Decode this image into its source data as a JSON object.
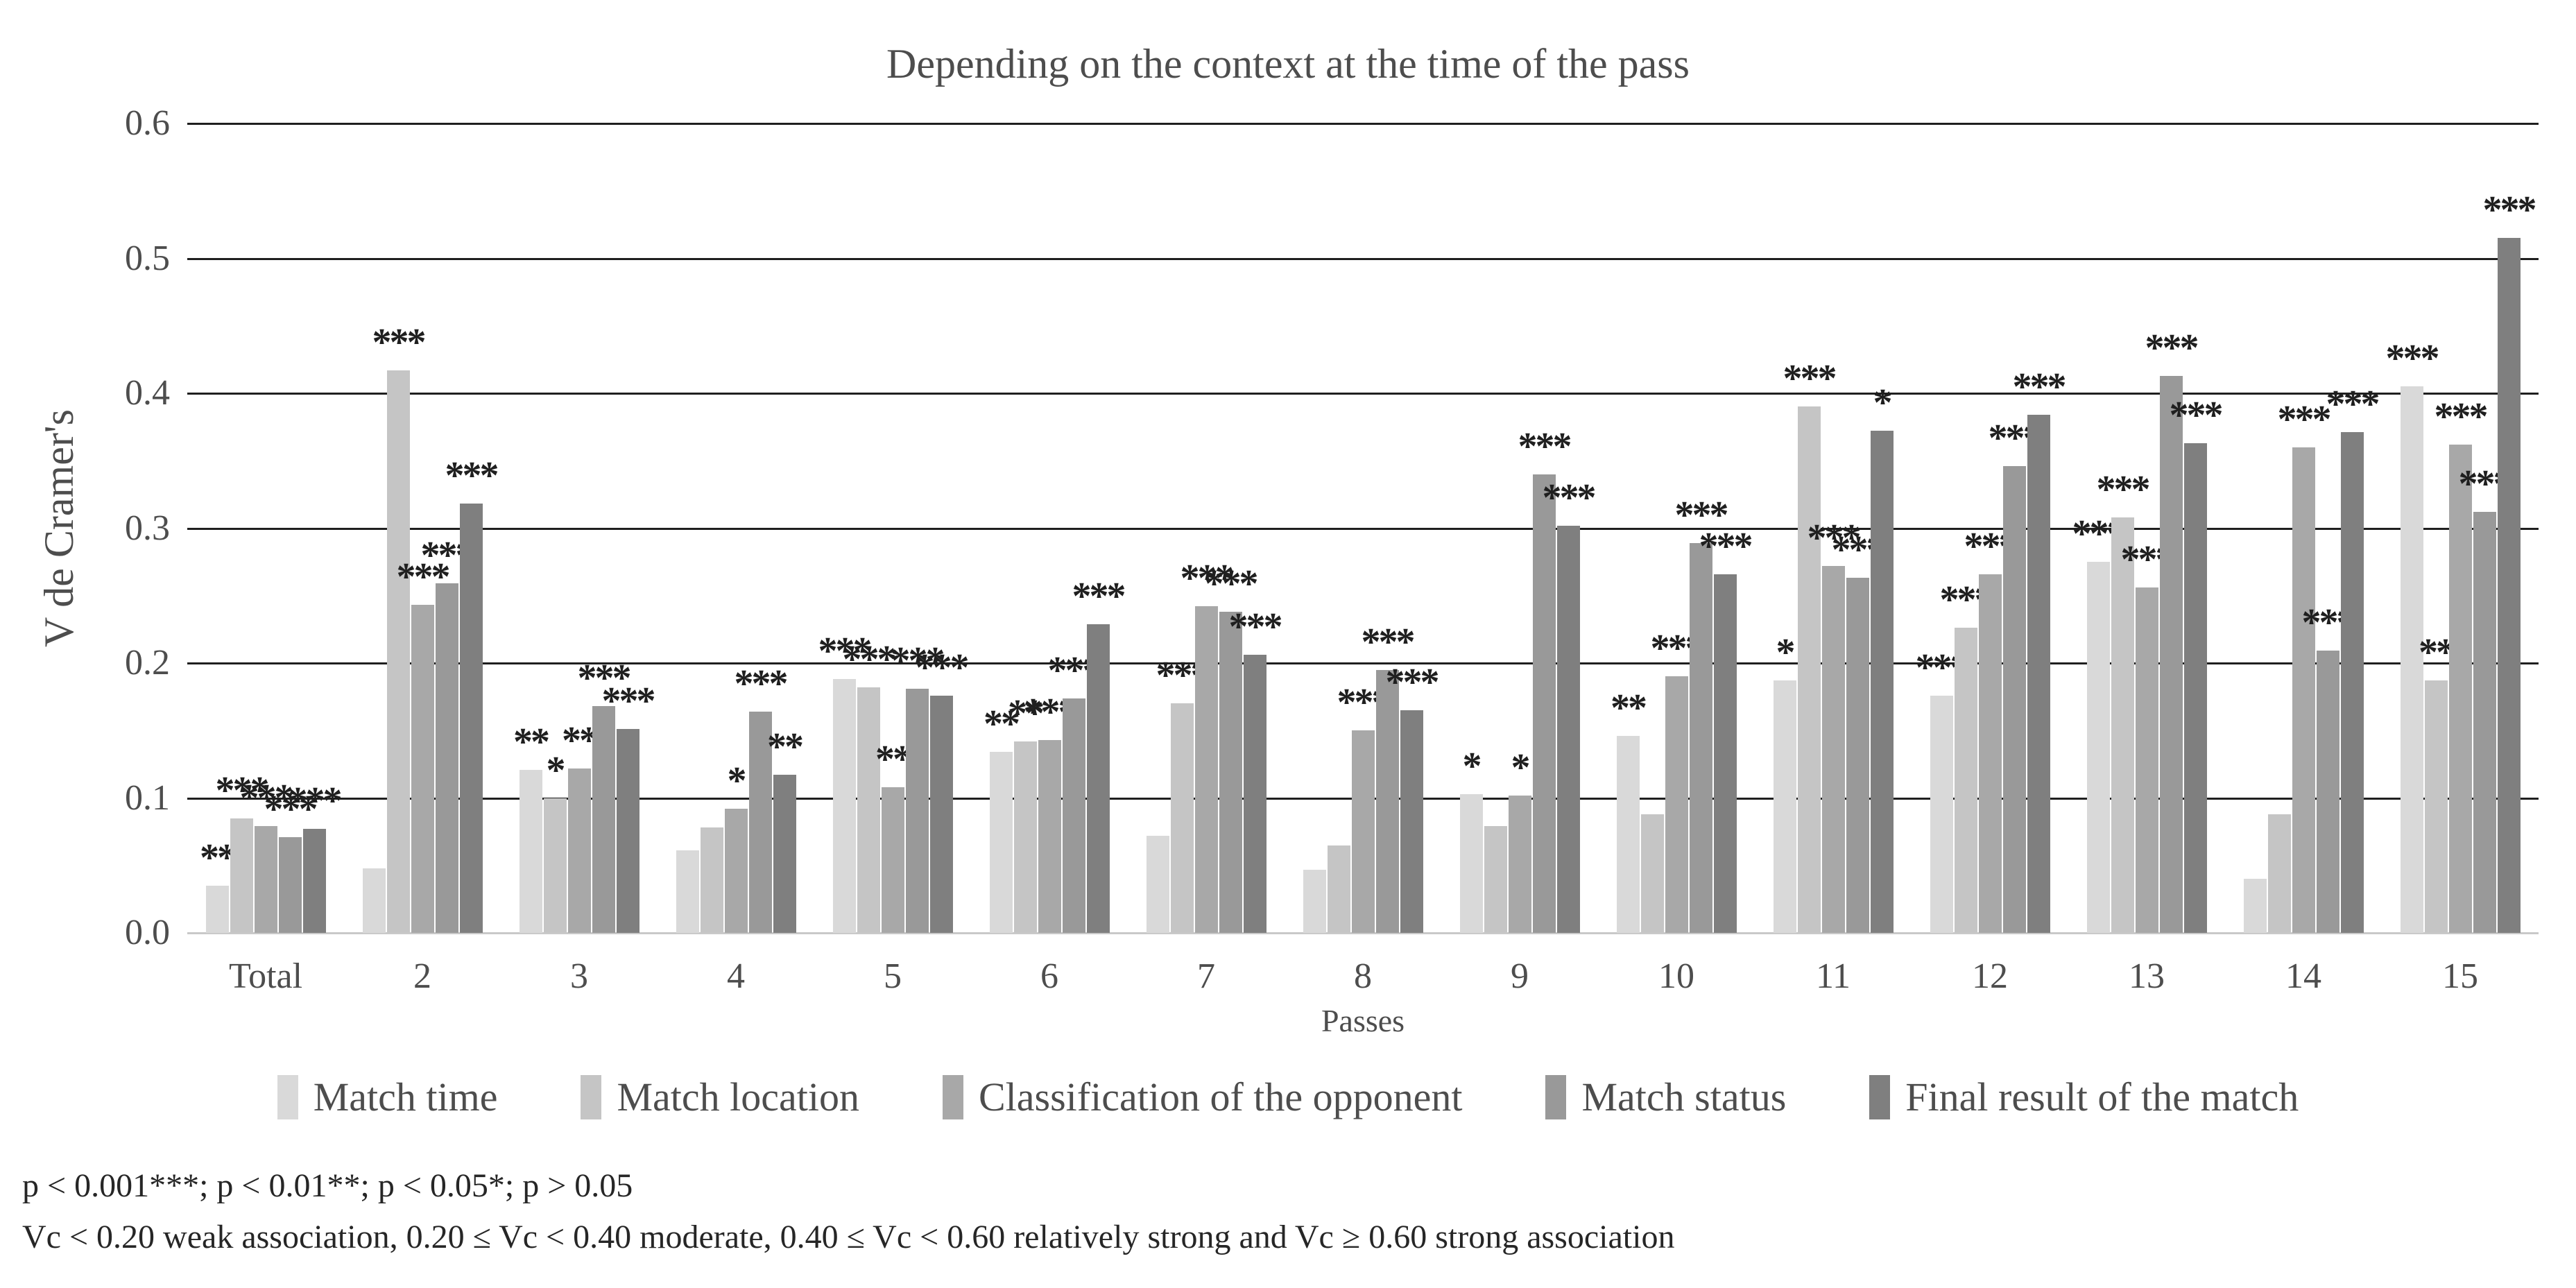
{
  "title": "Depending on the context at the time of the pass",
  "y_axis": {
    "title": "V de Cramer's",
    "ticks": [
      "0.6",
      "0.5",
      "0.4",
      "0.3",
      "0.2",
      "0.1",
      "0.0"
    ],
    "min": 0.0,
    "max": 0.6
  },
  "x_axis": {
    "title": "Passes",
    "categories": [
      "Total",
      "2",
      "3",
      "4",
      "5",
      "6",
      "7",
      "8",
      "9",
      "10",
      "11",
      "12",
      "13",
      "14",
      "15"
    ]
  },
  "legend": {
    "items": [
      {
        "label": "Match time",
        "color": "#d9d9d9"
      },
      {
        "label": "Match location",
        "color": "#c5c5c5"
      },
      {
        "label": "Classification of the opponent",
        "color": "#a8a8a8"
      },
      {
        "label": "Match status",
        "color": "#999999"
      },
      {
        "label": "Final result of the match",
        "color": "#7f7f7f"
      }
    ]
  },
  "footnotes": {
    "pvalues": "p < 0.001***; p < 0.01**; p < 0.05*; p > 0.05",
    "vc_scale": "Vc < 0.20 weak association, 0.20 ≤ Vc < 0.40 moderate, 0.40 ≤ Vc < 0.60 relatively strong and Vc ≥ 0.60 strong association"
  },
  "chart_data": {
    "type": "bar",
    "title": "Depending on the context at the time of the pass",
    "xlabel": "Passes",
    "ylabel": "V de Cramer's",
    "ylim": [
      0,
      0.6
    ],
    "grid": "horizontal",
    "legend_position": "bottom",
    "categories": [
      "Total",
      "2",
      "3",
      "4",
      "5",
      "6",
      "7",
      "8",
      "9",
      "10",
      "11",
      "12",
      "13",
      "14",
      "15"
    ],
    "series": [
      {
        "name": "Match time",
        "color": "#d9d9d9",
        "values": [
          0.035,
          0.048,
          0.121,
          0.061,
          0.188,
          0.134,
          0.072,
          0.047,
          0.103,
          0.146,
          0.187,
          0.176,
          0.275,
          0.04,
          0.405
        ],
        "significance": [
          "**",
          "",
          "**",
          "",
          "***",
          "**",
          "",
          "",
          "*",
          "**",
          "*",
          "***",
          "***",
          "",
          "***"
        ]
      },
      {
        "name": "Match location",
        "color": "#c5c5c5",
        "values": [
          0.085,
          0.417,
          0.1,
          0.078,
          0.182,
          0.142,
          0.17,
          0.065,
          0.079,
          0.088,
          0.39,
          0.226,
          0.308,
          0.088,
          0.187
        ],
        "significance": [
          "***",
          "***",
          "*",
          "",
          "***",
          "**",
          "***",
          "",
          "",
          "",
          "***",
          "***",
          "***",
          "",
          "**"
        ]
      },
      {
        "name": "Classification of the opponent",
        "color": "#a8a8a8",
        "values": [
          0.079,
          0.243,
          0.122,
          0.092,
          0.108,
          0.143,
          0.242,
          0.15,
          0.102,
          0.19,
          0.272,
          0.266,
          0.256,
          0.36,
          0.362
        ],
        "significance": [
          "***",
          "***",
          "**",
          "*",
          "**",
          "***",
          "***",
          "***",
          "*",
          "***",
          "***",
          "***",
          "***",
          "***",
          "***"
        ]
      },
      {
        "name": "Match status",
        "color": "#999999",
        "values": [
          0.071,
          0.259,
          0.168,
          0.164,
          0.181,
          0.174,
          0.238,
          0.195,
          0.34,
          0.289,
          0.263,
          0.346,
          0.413,
          0.209,
          0.312
        ],
        "significance": [
          "***",
          "***",
          "***",
          "***",
          "***",
          "***",
          "***",
          "***",
          "***",
          "***",
          "***",
          "***",
          "***",
          "***",
          "***"
        ]
      },
      {
        "name": "Final result of the match",
        "color": "#7f7f7f",
        "values": [
          0.077,
          0.318,
          0.151,
          0.117,
          0.176,
          0.229,
          0.206,
          0.165,
          0.302,
          0.266,
          0.372,
          0.384,
          0.363,
          0.371,
          0.515
        ],
        "significance": [
          "***",
          "***",
          "***",
          "**",
          "***",
          "***",
          "***",
          "***",
          "***",
          "***",
          "*",
          "***",
          "***",
          "***",
          "***"
        ]
      }
    ]
  }
}
